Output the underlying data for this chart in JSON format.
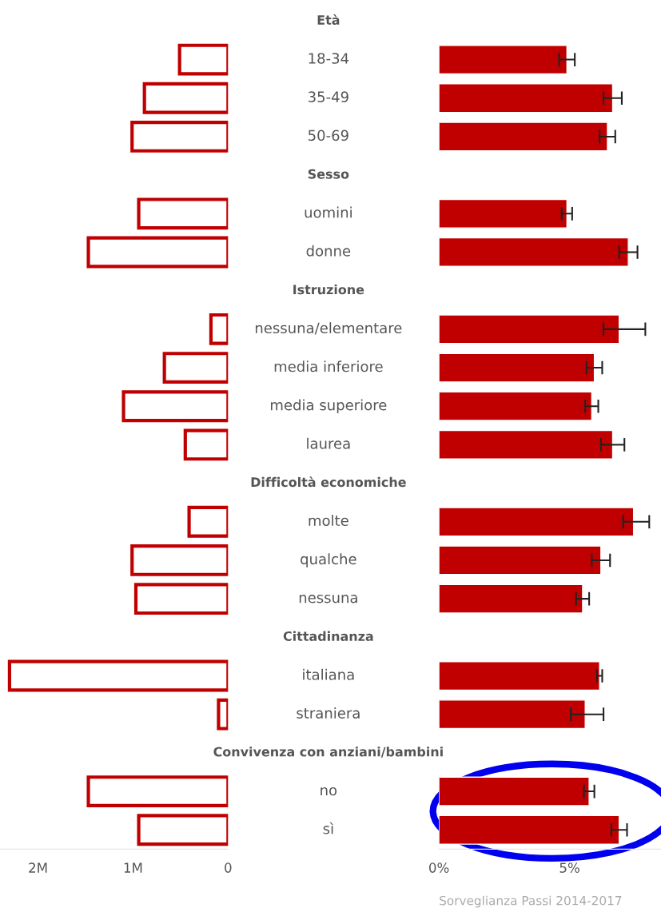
{
  "chart_data": [
    {
      "type": "bar",
      "orientation": "horizontal",
      "categories": [
        "Età",
        "18-34",
        "35-49",
        "50-69",
        "Sesso",
        "uomini",
        "donne",
        "Istruzione",
        "nessuna/elementare",
        "media inferiore",
        "media superiore",
        "laurea",
        "Difficoltà economiche",
        "molte",
        "qualche",
        "nessuna",
        "Cittadinanza",
        "italiana",
        "straniera",
        "Convivenza con anziani/bambini",
        "no",
        "sì"
      ],
      "values": [
        null,
        0.51,
        0.88,
        1.01,
        null,
        0.94,
        1.47,
        null,
        0.18,
        0.67,
        1.1,
        0.45,
        null,
        0.41,
        1.01,
        0.97,
        null,
        2.3,
        0.1,
        null,
        1.47,
        0.94
      ],
      "color": "#c00000",
      "xlim": [
        2.4,
        0
      ],
      "xticks": [
        {
          "value": 2,
          "label": "2M"
        },
        {
          "value": 1,
          "label": "1M"
        },
        0
      ]
    },
    {
      "type": "bar",
      "orientation": "horizontal",
      "values": [
        null,
        4.9,
        6.65,
        6.45,
        null,
        4.9,
        7.25,
        null,
        6.9,
        5.95,
        5.85,
        6.65,
        null,
        7.45,
        6.2,
        5.5,
        null,
        6.15,
        5.6,
        null,
        5.75,
        6.9
      ],
      "errors": [
        null,
        0.3,
        0.35,
        0.3,
        null,
        0.2,
        0.35,
        null,
        [
          6.3,
          7.9
        ],
        0.3,
        0.25,
        0.45,
        null,
        [
          7.05,
          8.05
        ],
        0.35,
        0.25,
        null,
        0.1,
        [
          5.05,
          6.3
        ],
        null,
        0.2,
        0.3
      ],
      "color": "#c00000",
      "xlim": [
        0,
        8.5
      ],
      "xticks": [
        {
          "value": 0,
          "label": "0%"
        },
        {
          "value": 5,
          "label": "5%"
        }
      ],
      "annotations": [
        "Sorveglianza Passi 2014-2017"
      ]
    }
  ]
}
